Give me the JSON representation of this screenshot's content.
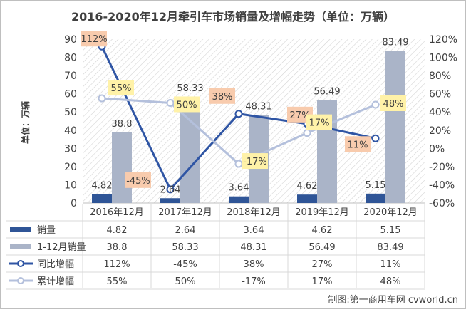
{
  "chart_data": {
    "type": "bar",
    "title": "2016-2020年12月牵引车市场销量及增幅走势（单位：万辆）",
    "ylabel": "单位：万辆",
    "categories": [
      "2016年12月",
      "2017年12月",
      "2018年12月",
      "2019年12月",
      "2020年12月"
    ],
    "ylim": [
      0,
      90
    ],
    "y2lim": [
      -60,
      120
    ],
    "yticks": [
      "0",
      "10",
      "20",
      "30",
      "40",
      "50",
      "60",
      "70",
      "80",
      "90"
    ],
    "y2ticks": [
      "-60%",
      "-40%",
      "-20%",
      "0%",
      "20%",
      "40%",
      "60%",
      "80%",
      "100%",
      "120%"
    ],
    "grid": false,
    "legend_position": "table-bottom",
    "series": [
      {
        "name": "销量",
        "kind": "bar",
        "axis": "left",
        "color": "#2f5597",
        "values": [
          4.82,
          2.64,
          3.64,
          4.62,
          5.15
        ],
        "labels": [
          "4.82",
          "2.64",
          "3.64",
          "4.62",
          "5.15"
        ]
      },
      {
        "name": "1-12月销量",
        "kind": "bar",
        "axis": "left",
        "color": "#aab4c8",
        "values": [
          38.8,
          58.33,
          48.31,
          56.49,
          83.49
        ],
        "labels": [
          "38.8",
          "58.33",
          "48.31",
          "56.49",
          "83.49"
        ]
      },
      {
        "name": "同比增幅",
        "kind": "line",
        "axis": "right",
        "color": "#2f55a4",
        "label_bg": "#f8cbad",
        "values": [
          112,
          -45,
          38,
          27,
          11
        ],
        "labels": [
          "112%",
          "-45%",
          "38%",
          "27%",
          "11%"
        ]
      },
      {
        "name": "累计增幅",
        "kind": "line",
        "axis": "right",
        "color": "#b4c0dc",
        "label_bg": "#fff2a8",
        "values": [
          55,
          50,
          -17,
          17,
          48
        ],
        "labels": [
          "55%",
          "50%",
          "-17%",
          "17%",
          "48%"
        ]
      }
    ],
    "table": {
      "rows": [
        [
          "4.82",
          "2.64",
          "3.64",
          "4.62",
          "5.15"
        ],
        [
          "38.8",
          "58.33",
          "48.31",
          "56.49",
          "83.49"
        ],
        [
          "112%",
          "-45%",
          "38%",
          "27%",
          "11%"
        ],
        [
          "55%",
          "50%",
          "-17%",
          "17%",
          "48%"
        ]
      ]
    },
    "source": "制图:第一商用车网 cvworld.cn"
  }
}
